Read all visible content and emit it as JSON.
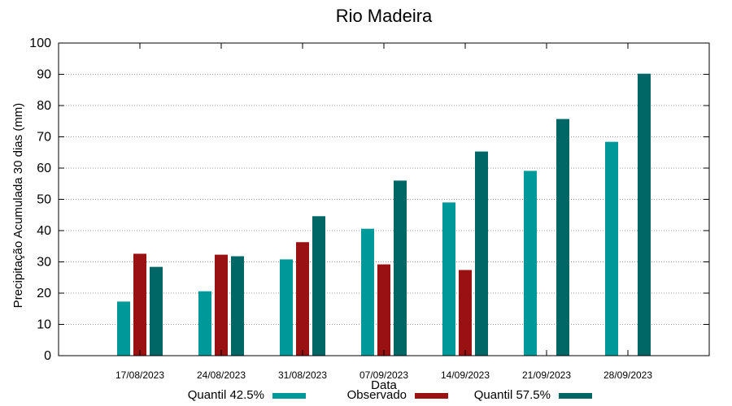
{
  "chart_data": {
    "type": "bar",
    "title": "Rio Madeira",
    "xlabel": "Data",
    "ylabel": "Precipitação Acumulada 30 dias (mm)",
    "ylim": [
      0,
      100
    ],
    "yticks": [
      0,
      10,
      20,
      30,
      40,
      50,
      60,
      70,
      80,
      90,
      100
    ],
    "grid": true,
    "legend_position": "bottom",
    "categories": [
      "17/08/2023",
      "24/08/2023",
      "31/08/2023",
      "07/09/2023",
      "14/09/2023",
      "21/09/2023",
      "28/09/2023"
    ],
    "series": [
      {
        "name": "Quantil 42.5%",
        "color": "#009999",
        "values": [
          17.3,
          20.6,
          30.8,
          40.6,
          49.0,
          59.1,
          68.4
        ]
      },
      {
        "name": "Observado",
        "color": "#991111",
        "values": [
          32.6,
          32.3,
          36.3,
          29.2,
          27.4,
          null,
          null
        ]
      },
      {
        "name": "Quantil 57.5%",
        "color": "#006666",
        "values": [
          28.4,
          31.8,
          44.6,
          56.0,
          65.3,
          75.7,
          90.2
        ]
      }
    ]
  }
}
